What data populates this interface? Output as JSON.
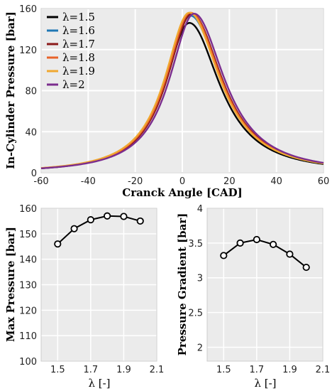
{
  "colors": {
    "panel_bg": "#ebebeb",
    "grid": "#ffffff",
    "frame": "#cccccc",
    "marker_line": "#000000",
    "marker_fill": "#ffffff"
  },
  "chart_data": [
    {
      "type": "line",
      "xlabel": "Cranck Angle [CAD]",
      "ylabel": "In-Cylinder Pressure [bar]",
      "xlim": [
        -60,
        60
      ],
      "ylim": [
        0,
        160
      ],
      "x_ticks": [
        -60,
        -40,
        -20,
        0,
        20,
        40,
        60
      ],
      "y_ticks": [
        0,
        40,
        80,
        120,
        160
      ],
      "x_tick_labels": [
        "-60",
        "-40",
        "-20",
        "0",
        "20",
        "40",
        "60"
      ],
      "y_tick_labels": [
        "0",
        "40",
        "80",
        "120",
        "160"
      ],
      "grid": true,
      "legend_position": "top-left",
      "legend": [
        "λ=1.5",
        "λ=1.6",
        "λ=1.7",
        "λ=1.8",
        "λ=1.9",
        "λ=2"
      ],
      "series": [
        {
          "name": "λ=1.5",
          "color": "#000000",
          "peak": 146,
          "peak_x": 3.0
        },
        {
          "name": "λ=1.6",
          "color": "#1f77b4",
          "peak": 153,
          "peak_x": 3.5
        },
        {
          "name": "λ=1.7",
          "color": "#8b1a1a",
          "peak": 155,
          "peak_x": 4.0
        },
        {
          "name": "λ=1.8",
          "color": "#e8632a",
          "peak": 156,
          "peak_x": 3.5
        },
        {
          "name": "λ=1.9",
          "color": "#f0a830",
          "peak": 156,
          "peak_x": 3.0
        },
        {
          "name": "λ=2",
          "color": "#7b2d8e",
          "peak": 155,
          "peak_x": 5.0
        }
      ]
    },
    {
      "type": "line",
      "xlabel": "λ [-]",
      "ylabel": "Max Pressure [bar]",
      "xlim": [
        1.4,
        2.1
      ],
      "ylim": [
        100,
        160
      ],
      "x_ticks": [
        1.5,
        1.7,
        1.9,
        2.1
      ],
      "y_ticks": [
        100,
        110,
        120,
        130,
        140,
        150,
        160
      ],
      "x_tick_labels": [
        "1.5",
        "1.7",
        "1.9",
        "2.1"
      ],
      "y_tick_labels": [
        "100",
        "110",
        "120",
        "130",
        "140",
        "150",
        "160"
      ],
      "grid": true,
      "x": [
        1.5,
        1.6,
        1.7,
        1.8,
        1.9,
        2.0
      ],
      "values": [
        146,
        152,
        155.5,
        157,
        156.8,
        155
      ]
    },
    {
      "type": "line",
      "xlabel": "λ [-]",
      "ylabel": "Pressure Gradient [bar]",
      "xlim": [
        1.4,
        2.1
      ],
      "ylim": [
        1.8,
        4
      ],
      "x_ticks": [
        1.5,
        1.7,
        1.9,
        2.1
      ],
      "y_ticks": [
        2,
        2.5,
        3,
        3.5,
        4
      ],
      "x_tick_labels": [
        "1.5",
        "1.7",
        "1.9",
        "2.1"
      ],
      "y_tick_labels": [
        "2",
        "2.5",
        "3",
        "3.5",
        "4"
      ],
      "grid": true,
      "x": [
        1.5,
        1.6,
        1.7,
        1.8,
        1.9,
        2.0
      ],
      "values": [
        3.32,
        3.5,
        3.55,
        3.48,
        3.34,
        3.15
      ]
    }
  ]
}
